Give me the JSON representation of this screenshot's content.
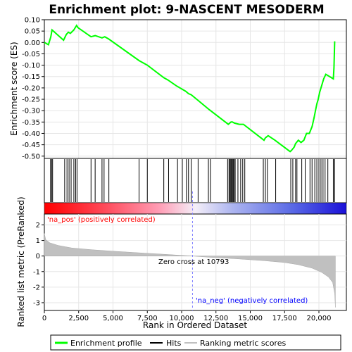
{
  "chart_data": {
    "type": "line",
    "title": "Enrichment plot: 9-NASCENT MESODERM",
    "xlabel": "Rank in Ordered Dataset",
    "ylabel_top": "Enrichment score (ES)",
    "ylabel_bottom": "Ranked list metric (PreRanked)",
    "x_range": [
      0,
      22000
    ],
    "es_range": [
      -0.51,
      0.1
    ],
    "metric_range": [
      -3.5,
      2.7
    ],
    "x_ticks": [
      0,
      2500,
      5000,
      7500,
      10000,
      12500,
      15000,
      17500,
      20000
    ],
    "x_tick_labels": [
      "0",
      "2,500",
      "5,000",
      "7,500",
      "10,000",
      "12,500",
      "15,000",
      "17,500",
      "20,000"
    ],
    "es_ticks": [
      0.1,
      0.05,
      0.0,
      -0.05,
      -0.1,
      -0.15,
      -0.2,
      -0.25,
      -0.3,
      -0.35,
      -0.4,
      -0.45,
      -0.5
    ],
    "es_tick_labels": [
      "0.10",
      "0.05",
      "0.00",
      "-0.05",
      "-0.10",
      "-0.15",
      "-0.20",
      "-0.25",
      "-0.30",
      "-0.35",
      "-0.40",
      "-0.45",
      "-0.50"
    ],
    "metric_ticks": [
      2,
      1,
      0,
      -1,
      -2,
      -3
    ],
    "metric_tick_labels": [
      "2",
      "1",
      "0",
      "-1",
      "-2",
      "-3"
    ],
    "es_curve": {
      "x": [
        0,
        300,
        470,
        560,
        1400,
        1600,
        1750,
        1900,
        2150,
        2350,
        2450,
        3400,
        3700,
        4200,
        4400,
        4700,
        6900,
        7500,
        8700,
        9000,
        9600,
        10300,
        10500,
        10700,
        11200,
        12000,
        13400,
        13500,
        13600,
        13700,
        13850,
        14200,
        14500,
        16000,
        16100,
        16300,
        16800,
        17900,
        18000,
        18200,
        18300,
        18500,
        18700,
        18900,
        19100,
        19300,
        19500,
        19650,
        19750,
        19850,
        19950,
        20050,
        20200,
        20350,
        20500,
        21050,
        21100,
        21150
      ],
      "y": [
        0.0,
        -0.01,
        0.025,
        0.055,
        0.01,
        0.035,
        0.045,
        0.04,
        0.055,
        0.075,
        0.065,
        0.025,
        0.03,
        0.02,
        0.025,
        0.015,
        -0.08,
        -0.1,
        -0.155,
        -0.165,
        -0.19,
        -0.215,
        -0.225,
        -0.23,
        -0.255,
        -0.295,
        -0.36,
        -0.355,
        -0.35,
        -0.35,
        -0.355,
        -0.36,
        -0.36,
        -0.43,
        -0.42,
        -0.41,
        -0.43,
        -0.48,
        -0.475,
        -0.46,
        -0.445,
        -0.43,
        -0.44,
        -0.43,
        -0.4,
        -0.4,
        -0.37,
        -0.33,
        -0.3,
        -0.27,
        -0.25,
        -0.22,
        -0.19,
        -0.16,
        -0.14,
        -0.16,
        -0.11,
        0.005
      ]
    },
    "hits": [
      450,
      530,
      600,
      1480,
      1650,
      1800,
      1950,
      2150,
      2280,
      2380,
      3400,
      3700,
      4200,
      4350,
      4700,
      6900,
      7500,
      8700,
      9050,
      9700,
      10050,
      10350,
      10500,
      10700,
      11200,
      11950,
      12100,
      13350,
      13450,
      13520,
      13580,
      13640,
      13700,
      13760,
      13820,
      13900,
      14100,
      14300,
      14450,
      14600,
      15950,
      16100,
      16250,
      16850,
      17950,
      18100,
      18300,
      18400,
      18750,
      19000,
      19350,
      19500,
      19700,
      19850,
      20000,
      20150,
      20300,
      20450,
      20650,
      21050,
      21150
    ],
    "metric_curve": {
      "x": [
        0,
        100,
        400,
        1000,
        2000,
        3500,
        5000,
        7000,
        9000,
        10793,
        12000,
        14000,
        16000,
        17500,
        18500,
        19500,
        20200,
        20700,
        21000,
        21150,
        21200
      ],
      "y": [
        1.45,
        1.05,
        0.85,
        0.68,
        0.52,
        0.4,
        0.31,
        0.2,
        0.1,
        0.0,
        -0.08,
        -0.18,
        -0.3,
        -0.42,
        -0.56,
        -0.78,
        -1.05,
        -1.35,
        -1.7,
        -2.4,
        -3.3
      ]
    },
    "pos_label": "'na_pos' (positively correlated)",
    "neg_label": "'na_neg' (negatively correlated)",
    "zero_cross_label": "Zero cross at 10793",
    "zero_cross_x": 10793,
    "legend": [
      {
        "label": "Enrichment profile",
        "color": "#00ff00"
      },
      {
        "label": "Hits",
        "color": "#000000"
      },
      {
        "label": "Ranking metric scores",
        "color": "#c0c0c0"
      }
    ],
    "legend_position": "bottom",
    "grid": true
  },
  "colors": {
    "es_line": "#00ff00",
    "hit_line": "#000000",
    "metric_fill": "#c0c0c0",
    "pos_text": "#ff0000",
    "neg_text": "#0000ff",
    "zero_line": "#8080ff",
    "grid": "#e6e6e6"
  }
}
